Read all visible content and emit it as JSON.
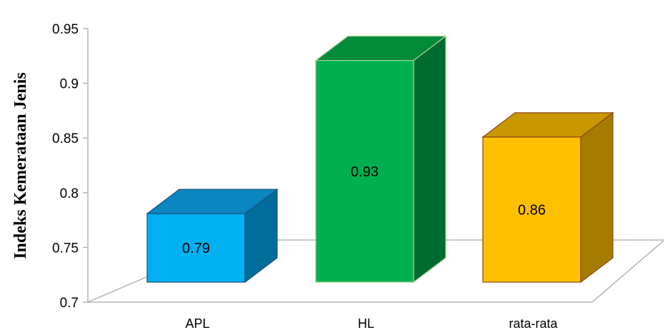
{
  "chart_data": {
    "type": "bar",
    "categories": [
      "APL",
      "HL",
      "rata-rata"
    ],
    "values": [
      0.79,
      0.93,
      0.86
    ],
    "data_labels": [
      "0.79",
      "0.93",
      "0.86"
    ],
    "title": "",
    "xlabel": "",
    "ylabel": "Indeks Kemerataan Jenis",
    "ylim": [
      0.7,
      0.95
    ],
    "yticks": [
      "0.7",
      "0.75",
      "0.8",
      "0.85",
      "0.9",
      "0.95"
    ],
    "grid": false,
    "style": "3d-column",
    "colors": {
      "APL": {
        "front": "#00B0F0",
        "side": "#006E9A",
        "top": "#0A86C0",
        "edge": "#1F4E79"
      },
      "HL": {
        "front": "#00B050",
        "side": "#006B2E",
        "top": "#008A3A",
        "edge": "#A9D18E"
      },
      "rata-rata": {
        "front": "#FFC000",
        "side": "#A67C00",
        "top": "#C99700",
        "edge": "#8B4513"
      }
    }
  }
}
